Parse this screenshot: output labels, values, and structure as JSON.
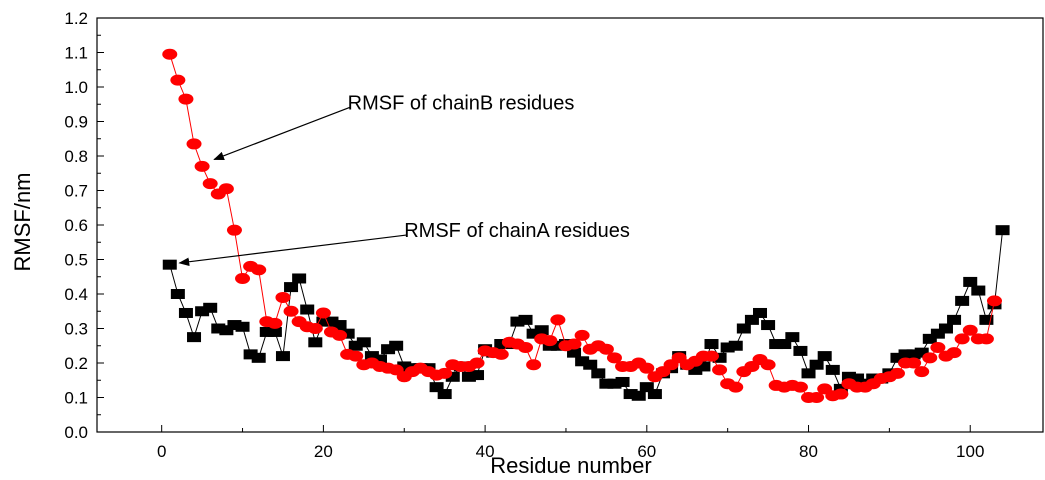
{
  "chart_data": {
    "type": "line",
    "xlabel": "Residue number",
    "ylabel": "RMSF/nm",
    "xlim": [
      -8,
      109
    ],
    "ylim": [
      0.0,
      1.2
    ],
    "xticks": [
      0,
      20,
      40,
      60,
      80,
      100
    ],
    "yticks": [
      0.0,
      0.1,
      0.2,
      0.3,
      0.4,
      0.5,
      0.6,
      0.7,
      0.8,
      0.9,
      1.0,
      1.1,
      1.2
    ],
    "ytick_labels": [
      "0.0",
      "0.1",
      "0.2",
      "0.3",
      "0.4",
      "0.5",
      "0.6",
      "0.7",
      "0.8",
      "0.9",
      "1.0",
      "1.1",
      "1.2"
    ],
    "grid": false,
    "series": [
      {
        "color": "#000000",
        "marker": "square",
        "x": [
          1,
          2,
          3,
          4,
          5,
          6,
          7,
          8,
          9,
          10,
          11,
          12,
          13,
          14,
          15,
          16,
          17,
          18,
          19,
          20,
          21,
          22,
          23,
          24,
          25,
          26,
          27,
          28,
          29,
          30,
          31,
          32,
          33,
          34,
          35,
          36,
          37,
          38,
          39,
          40,
          41,
          42,
          43,
          44,
          45,
          46,
          47,
          48,
          49,
          50,
          51,
          52,
          53,
          54,
          55,
          56,
          57,
          58,
          59,
          60,
          61,
          62,
          63,
          64,
          65,
          66,
          67,
          68,
          69,
          70,
          71,
          72,
          73,
          74,
          75,
          76,
          77,
          78,
          79,
          80,
          81,
          82,
          83,
          84,
          85,
          86,
          87,
          88,
          89,
          90,
          91,
          92,
          93,
          94,
          95,
          96,
          97,
          98,
          99,
          100,
          101,
          102,
          103,
          104
        ],
        "values": [
          0.485,
          0.4,
          0.345,
          0.275,
          0.35,
          0.36,
          0.3,
          0.295,
          0.31,
          0.305,
          0.225,
          0.215,
          0.29,
          0.29,
          0.22,
          0.42,
          0.445,
          0.355,
          0.26,
          0.32,
          0.32,
          0.31,
          0.285,
          0.25,
          0.26,
          0.22,
          0.21,
          0.24,
          0.25,
          0.19,
          0.185,
          0.185,
          0.185,
          0.13,
          0.11,
          0.16,
          0.19,
          0.16,
          0.165,
          0.24,
          0.23,
          0.255,
          0.255,
          0.32,
          0.325,
          0.285,
          0.295,
          0.25,
          0.25,
          0.255,
          0.23,
          0.205,
          0.195,
          0.17,
          0.14,
          0.14,
          0.145,
          0.11,
          0.105,
          0.13,
          0.11,
          0.17,
          0.185,
          0.22,
          0.195,
          0.18,
          0.19,
          0.255,
          0.215,
          0.245,
          0.25,
          0.3,
          0.325,
          0.345,
          0.31,
          0.255,
          0.255,
          0.275,
          0.235,
          0.17,
          0.195,
          0.22,
          0.18,
          0.125,
          0.16,
          0.155,
          0.14,
          0.155,
          0.155,
          0.17,
          0.215,
          0.225,
          0.225,
          0.23,
          0.27,
          0.285,
          0.3,
          0.325,
          0.38,
          0.435,
          0.41,
          0.325,
          0.37,
          0.585
        ]
      },
      {
        "color": "#ff0000",
        "marker": "circle",
        "x": [
          1,
          2,
          3,
          4,
          5,
          6,
          7,
          8,
          9,
          10,
          11,
          12,
          13,
          14,
          15,
          16,
          17,
          18,
          19,
          20,
          21,
          22,
          23,
          24,
          25,
          26,
          27,
          28,
          29,
          30,
          31,
          32,
          33,
          34,
          35,
          36,
          37,
          38,
          39,
          40,
          41,
          42,
          43,
          44,
          45,
          46,
          47,
          48,
          49,
          50,
          51,
          52,
          53,
          54,
          55,
          56,
          57,
          58,
          59,
          60,
          61,
          62,
          63,
          64,
          65,
          66,
          67,
          68,
          69,
          70,
          71,
          72,
          73,
          74,
          75,
          76,
          77,
          78,
          79,
          80,
          81,
          82,
          83,
          84,
          85,
          86,
          87,
          88,
          89,
          90,
          91,
          92,
          93,
          94,
          95,
          96,
          97,
          98,
          99,
          100,
          101,
          102,
          103
        ],
        "values": [
          1.095,
          1.02,
          0.965,
          0.835,
          0.77,
          0.72,
          0.69,
          0.705,
          0.585,
          0.445,
          0.48,
          0.47,
          0.32,
          0.315,
          0.39,
          0.35,
          0.32,
          0.305,
          0.3,
          0.345,
          0.29,
          0.28,
          0.225,
          0.22,
          0.195,
          0.2,
          0.19,
          0.185,
          0.18,
          0.16,
          0.175,
          0.185,
          0.175,
          0.165,
          0.17,
          0.195,
          0.19,
          0.19,
          0.2,
          0.235,
          0.23,
          0.225,
          0.26,
          0.255,
          0.245,
          0.195,
          0.27,
          0.265,
          0.325,
          0.25,
          0.255,
          0.28,
          0.24,
          0.25,
          0.24,
          0.215,
          0.19,
          0.19,
          0.2,
          0.185,
          0.16,
          0.175,
          0.195,
          0.215,
          0.195,
          0.205,
          0.22,
          0.22,
          0.18,
          0.14,
          0.13,
          0.175,
          0.19,
          0.21,
          0.195,
          0.135,
          0.13,
          0.135,
          0.13,
          0.1,
          0.1,
          0.125,
          0.105,
          0.11,
          0.14,
          0.13,
          0.13,
          0.14,
          0.155,
          0.16,
          0.17,
          0.2,
          0.2,
          0.175,
          0.215,
          0.245,
          0.22,
          0.23,
          0.27,
          0.295,
          0.27,
          0.27,
          0.38
        ]
      }
    ],
    "annotations": [
      {
        "text": "RMSF of chainB residues",
        "x": 23,
        "y": 0.935,
        "arrow_to": [
          6.5,
          0.79
        ]
      },
      {
        "text": "RMSF of chainA residues",
        "x": 30,
        "y": 0.565,
        "arrow_to": [
          2.2,
          0.49
        ]
      }
    ]
  }
}
